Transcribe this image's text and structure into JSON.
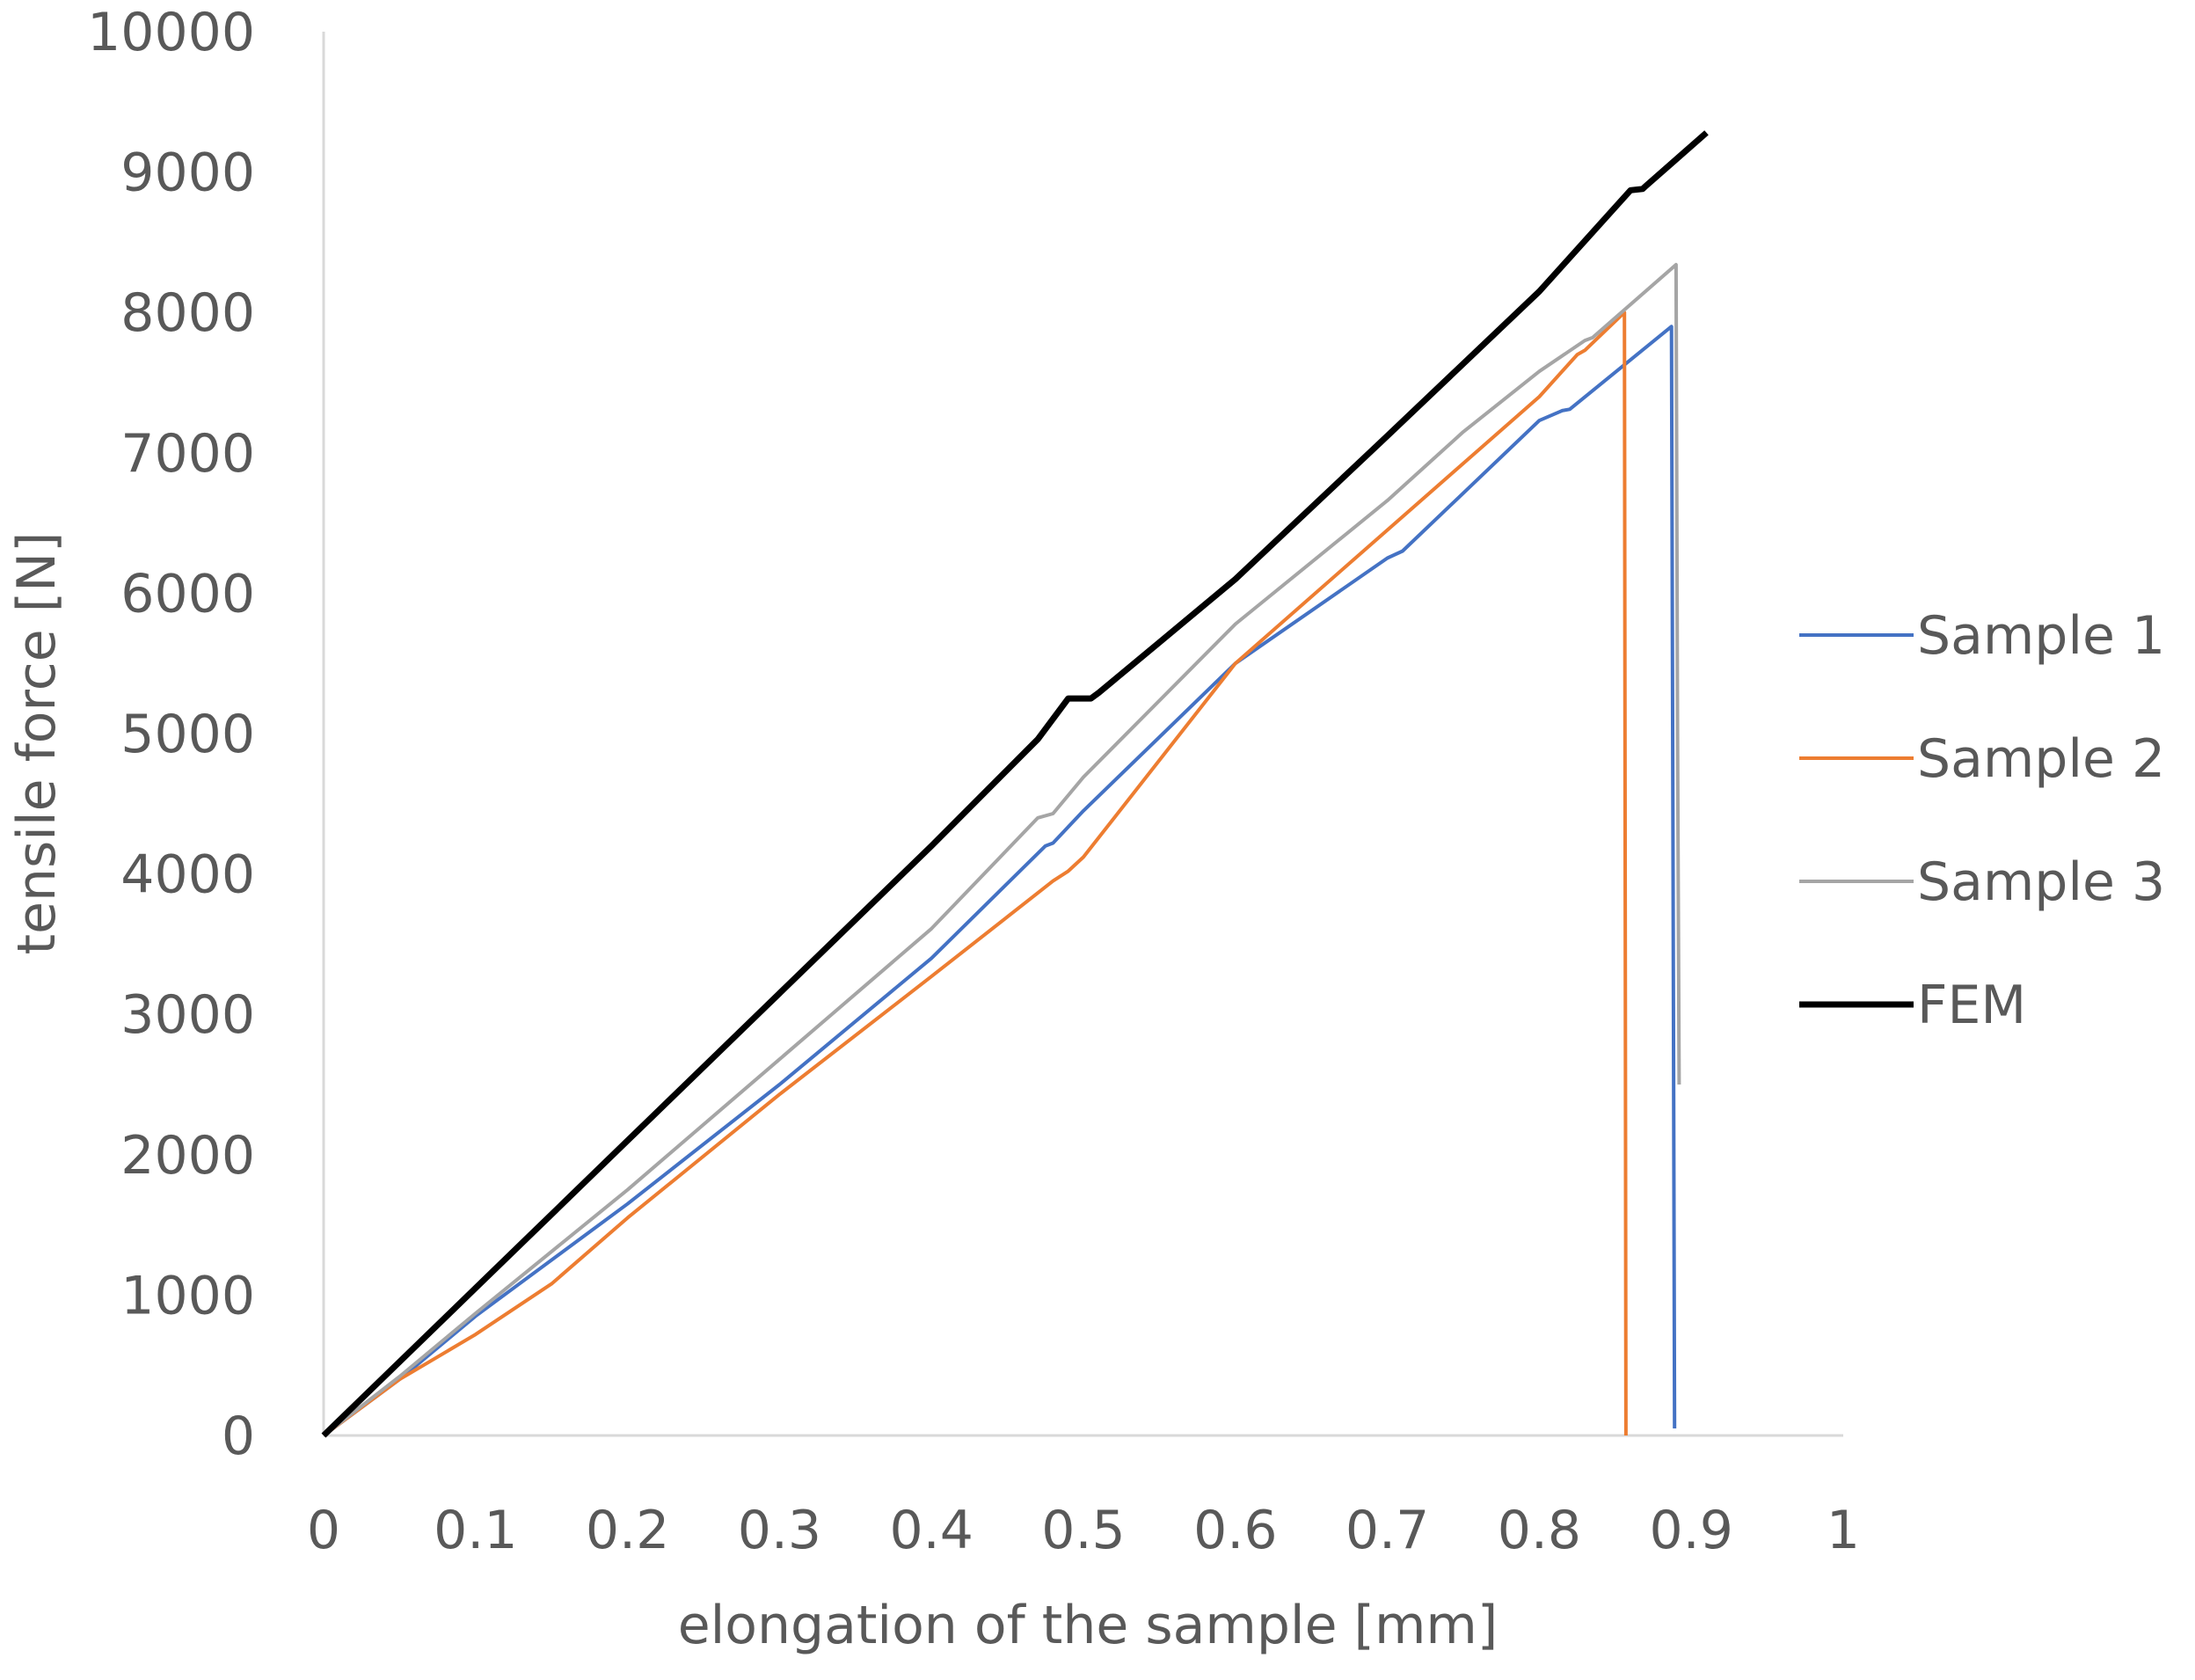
{
  "chart_data": {
    "type": "line",
    "xlabel": "elongation of the sample [mm]",
    "ylabel": "tensile force [N]",
    "xlim": [
      0,
      1
    ],
    "ylim": [
      0,
      10000
    ],
    "x_ticks": [
      "0",
      "0.1",
      "0.2",
      "0.3",
      "0.4",
      "0.5",
      "0.6",
      "0.7",
      "0.8",
      "0.9",
      "1"
    ],
    "y_ticks": [
      "0",
      "1000",
      "2000",
      "3000",
      "4000",
      "5000",
      "6000",
      "7000",
      "8000",
      "9000",
      "10000"
    ],
    "grid": false,
    "legend_position": "right",
    "series": [
      {
        "name": "Sample 1",
        "color": "#4472C4",
        "points": [
          [
            0,
            0
          ],
          [
            0.05,
            400
          ],
          [
            0.1,
            850
          ],
          [
            0.2,
            1650
          ],
          [
            0.3,
            2500
          ],
          [
            0.4,
            3400
          ],
          [
            0.475,
            4200
          ],
          [
            0.48,
            4220
          ],
          [
            0.5,
            4450
          ],
          [
            0.6,
            5500
          ],
          [
            0.7,
            6250
          ],
          [
            0.71,
            6300
          ],
          [
            0.8,
            7230
          ],
          [
            0.815,
            7300
          ],
          [
            0.82,
            7310
          ],
          [
            0.887,
            7900
          ],
          [
            0.888,
            4000
          ],
          [
            0.889,
            50
          ]
        ]
      },
      {
        "name": "Sample 2",
        "color": "#ED7D31",
        "points": [
          [
            0,
            0
          ],
          [
            0.05,
            400
          ],
          [
            0.1,
            720
          ],
          [
            0.15,
            1080
          ],
          [
            0.2,
            1550
          ],
          [
            0.3,
            2430
          ],
          [
            0.4,
            3270
          ],
          [
            0.48,
            3950
          ],
          [
            0.49,
            4020
          ],
          [
            0.5,
            4120
          ],
          [
            0.6,
            5500
          ],
          [
            0.7,
            6450
          ],
          [
            0.8,
            7400
          ],
          [
            0.825,
            7700
          ],
          [
            0.83,
            7730
          ],
          [
            0.856,
            8000
          ],
          [
            0.857,
            0
          ]
        ]
      },
      {
        "name": "Sample 3",
        "color": "#A5A5A5",
        "points": [
          [
            0,
            0
          ],
          [
            0.05,
            420
          ],
          [
            0.1,
            870
          ],
          [
            0.2,
            1750
          ],
          [
            0.3,
            2680
          ],
          [
            0.4,
            3610
          ],
          [
            0.47,
            4400
          ],
          [
            0.48,
            4430
          ],
          [
            0.5,
            4690
          ],
          [
            0.6,
            5780
          ],
          [
            0.7,
            6660
          ],
          [
            0.75,
            7150
          ],
          [
            0.8,
            7580
          ],
          [
            0.83,
            7800
          ],
          [
            0.835,
            7820
          ],
          [
            0.89,
            8340
          ],
          [
            0.891,
            5000
          ],
          [
            0.892,
            2500
          ]
        ]
      },
      {
        "name": "FEM",
        "color": "#000000",
        "points": [
          [
            0,
            0
          ],
          [
            0.1,
            1050
          ],
          [
            0.2,
            2100
          ],
          [
            0.3,
            3150
          ],
          [
            0.4,
            4200
          ],
          [
            0.47,
            4960
          ],
          [
            0.49,
            5250
          ],
          [
            0.505,
            5250
          ],
          [
            0.51,
            5290
          ],
          [
            0.55,
            5650
          ],
          [
            0.6,
            6100
          ],
          [
            0.7,
            7120
          ],
          [
            0.8,
            8150
          ],
          [
            0.86,
            8870
          ],
          [
            0.868,
            8880
          ],
          [
            0.87,
            8900
          ],
          [
            0.91,
            9280
          ]
        ]
      }
    ]
  }
}
